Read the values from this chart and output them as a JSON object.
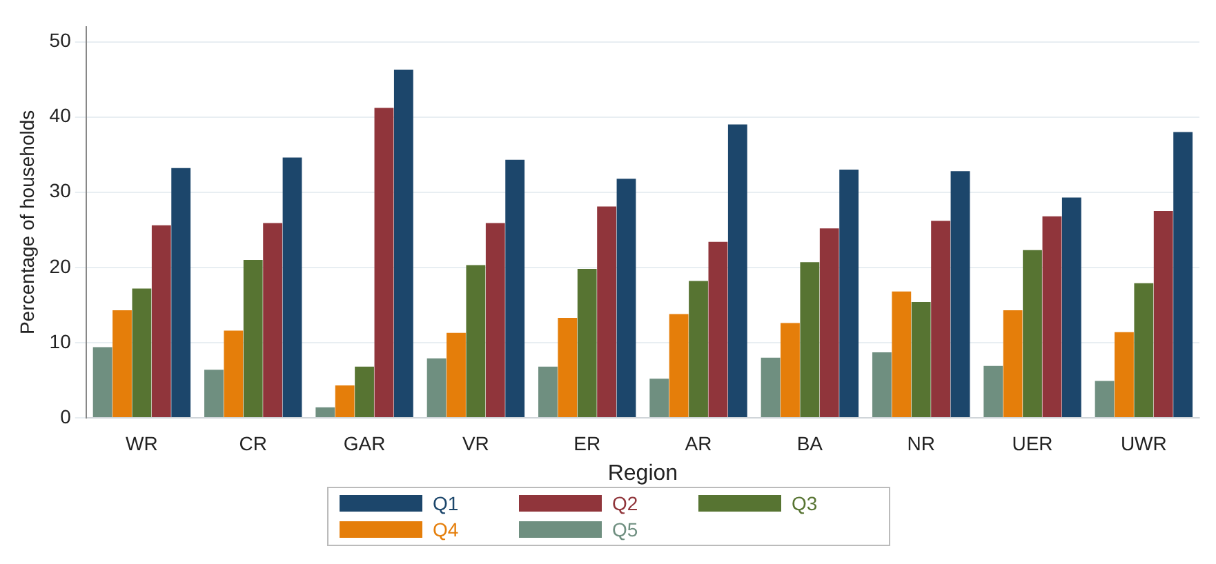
{
  "chart_data": {
    "type": "bar",
    "xlabel": "Region",
    "ylabel": "Percentage of households",
    "categories": [
      "WR",
      "CR",
      "GAR",
      "VR",
      "ER",
      "AR",
      "BA",
      "NR",
      "UER",
      "UWR"
    ],
    "series": [
      {
        "name": "Q5",
        "color": "#6f8f80",
        "values": [
          9.4,
          6.4,
          1.4,
          7.9,
          6.8,
          5.2,
          8.0,
          8.7,
          6.9,
          4.9
        ]
      },
      {
        "name": "Q4",
        "color": "#e57e0a",
        "values": [
          14.3,
          11.6,
          4.3,
          11.3,
          13.3,
          13.8,
          12.6,
          16.8,
          14.3,
          11.4
        ]
      },
      {
        "name": "Q3",
        "color": "#577432",
        "values": [
          17.2,
          21.0,
          6.8,
          20.3,
          19.8,
          18.2,
          20.7,
          15.4,
          22.3,
          17.9
        ]
      },
      {
        "name": "Q2",
        "color": "#90353b",
        "values": [
          25.6,
          25.9,
          41.2,
          25.9,
          28.1,
          23.4,
          25.2,
          26.2,
          26.8,
          27.5
        ]
      },
      {
        "name": "Q1",
        "color": "#1c466b",
        "values": [
          33.2,
          34.6,
          46.3,
          34.3,
          31.8,
          39.0,
          33.0,
          32.8,
          29.3,
          38.0
        ]
      }
    ],
    "ylim": [
      0,
      52
    ],
    "yticks": [
      0,
      10,
      20,
      30,
      40,
      50
    ],
    "grid": "y",
    "legend": "bottom"
  }
}
